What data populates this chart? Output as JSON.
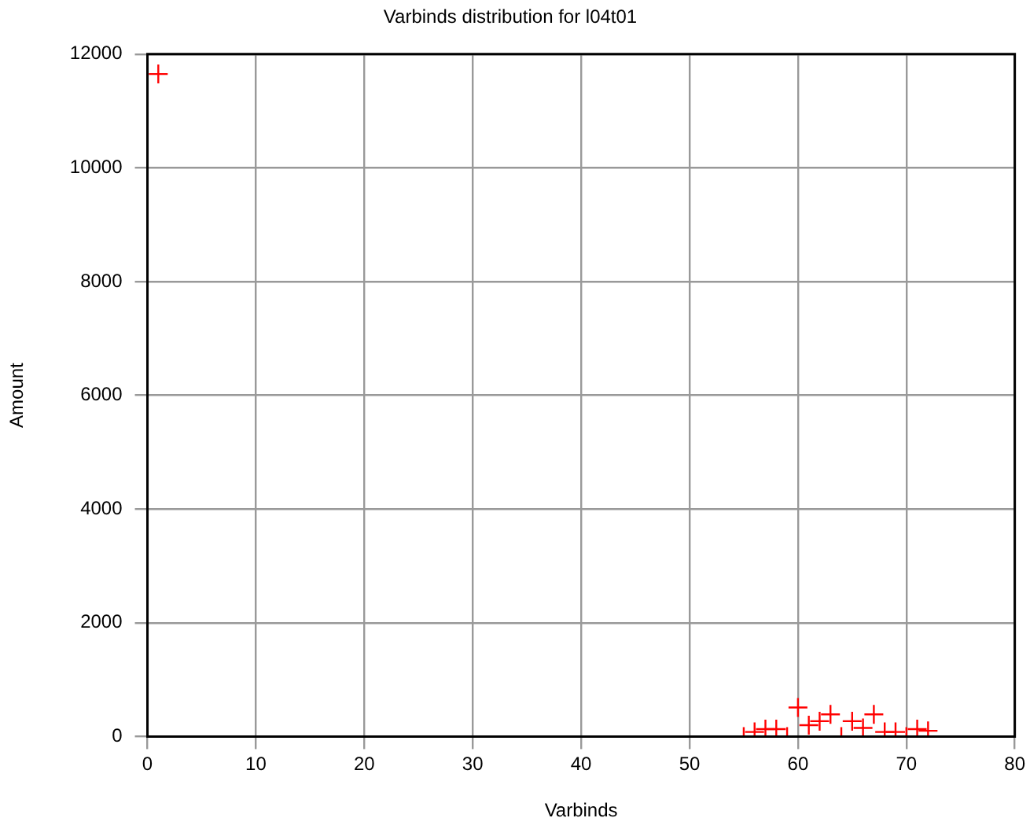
{
  "chart_data": {
    "type": "scatter",
    "title": "Varbinds distribution for l04t01",
    "xlabel": "Varbinds",
    "ylabel": "Amount",
    "x": [
      1,
      55,
      56,
      57,
      58,
      59,
      60,
      61,
      62,
      63,
      64,
      65,
      66,
      67,
      68,
      69,
      70,
      71,
      72
    ],
    "series": [
      {
        "color": "#ff0000",
        "values": [
          11650,
          0,
          80,
          130,
          130,
          0,
          510,
          200,
          270,
          390,
          0,
          270,
          150,
          390,
          80,
          80,
          0,
          130,
          100
        ]
      }
    ],
    "xlim": [
      0,
      80
    ],
    "xticks": [
      0,
      10,
      20,
      30,
      40,
      50,
      60,
      70,
      80
    ],
    "ylim": [
      0,
      12000
    ],
    "yticks": [
      0,
      2000,
      4000,
      6000,
      8000,
      10000,
      12000
    ],
    "grid": true,
    "legend": false,
    "marker": "cross"
  }
}
